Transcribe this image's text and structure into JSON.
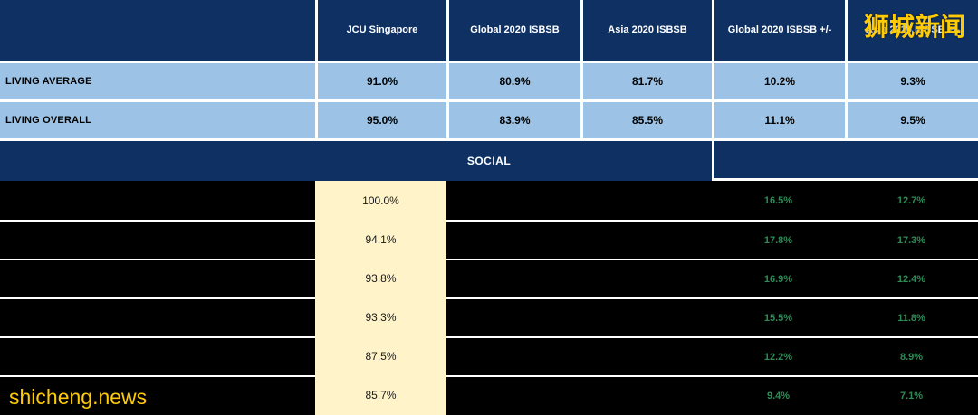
{
  "chart_data": {
    "type": "table",
    "columns": [
      "",
      "JCU Singapore",
      "Global 2020 ISBSB",
      "Asia 2020 ISBSB",
      "Global 2020 ISBSB +/-",
      "Asia 2020 ISBSB +/-"
    ],
    "living_section": {
      "rows": [
        {
          "label": "LIVING AVERAGE",
          "jcu": "91.0%",
          "global": "80.9%",
          "asia": "81.7%",
          "global_diff": "10.2%",
          "asia_diff": "9.3%"
        },
        {
          "label": "LIVING OVERALL",
          "jcu": "95.0%",
          "global": "83.9%",
          "asia": "85.5%",
          "global_diff": "11.1%",
          "asia_diff": "9.5%"
        }
      ]
    },
    "social_section": {
      "label": "SOCIAL",
      "rows": [
        {
          "jcu": "100.0%",
          "global_diff": "16.5%",
          "asia_diff": "12.7%"
        },
        {
          "jcu": "94.1%",
          "global_diff": "17.8%",
          "asia_diff": "17.3%"
        },
        {
          "jcu": "93.8%",
          "global_diff": "16.9%",
          "asia_diff": "12.4%"
        },
        {
          "jcu": "93.3%",
          "global_diff": "15.5%",
          "asia_diff": "11.8%"
        },
        {
          "jcu": "87.5%",
          "global_diff": "12.2%",
          "asia_diff": "8.9%"
        },
        {
          "jcu": "85.7%",
          "global_diff": "9.4%",
          "asia_diff": "7.1%"
        }
      ]
    }
  },
  "watermarks": {
    "site_name_cn": "狮城新闻",
    "site_url": "shicheng.news"
  },
  "colors": {
    "header_navy": "#0E3063",
    "light_blue": "#9CC3E5",
    "highlight_yellow": "#FFF4C9",
    "diff_green": "#2E8B57",
    "watermark_yellow": "#FFCB05"
  }
}
